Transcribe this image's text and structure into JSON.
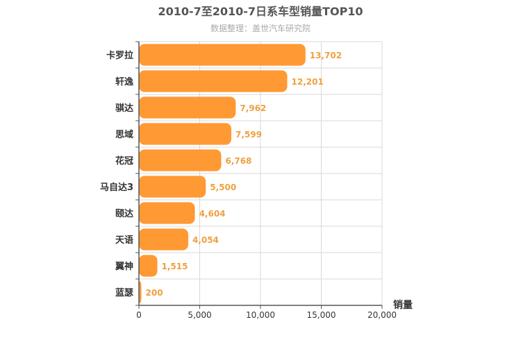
{
  "chart_data": {
    "type": "bar",
    "orientation": "horizontal",
    "title": "2010-7至2010-7日系车型销量TOP10",
    "subtitle": "数据整理：盖世汽车研究院",
    "xlabel": "销量",
    "ylabel": "",
    "categories": [
      "卡罗拉",
      "轩逸",
      "骐达",
      "思域",
      "花冠",
      "马自达3",
      "颐达",
      "天语",
      "翼神",
      "蓝瑟"
    ],
    "values": [
      13702,
      12201,
      7962,
      7599,
      6768,
      5500,
      4604,
      4054,
      1515,
      200
    ],
    "value_labels": [
      "13,702",
      "12,201",
      "7,962",
      "7,599",
      "6,768",
      "5,500",
      "4,604",
      "4,054",
      "1,515",
      "200"
    ],
    "xlim": [
      0,
      20000
    ],
    "xticks": [
      0,
      5000,
      10000,
      15000,
      20000
    ],
    "xtick_labels": [
      "0",
      "5,000",
      "10,000",
      "15,000",
      "20,000"
    ],
    "grid": true,
    "legend": "none",
    "colors": {
      "bar": "#ff9933",
      "value_label": "#f0a040",
      "title": "#555555",
      "subtitle": "#aaaaaa",
      "grid": "#d8d8d8",
      "axis": "#555555"
    }
  }
}
